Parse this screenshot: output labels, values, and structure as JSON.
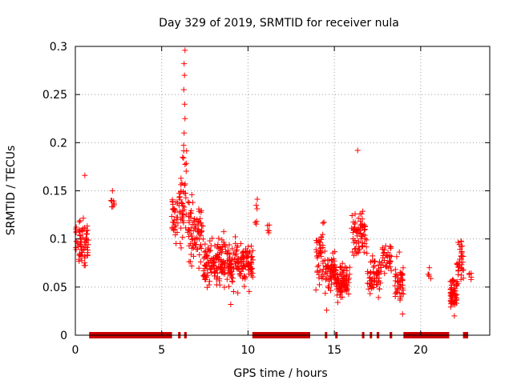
{
  "chart_data": {
    "type": "scatter",
    "title": "Day 329 of 2019, SRMTID for receiver nula",
    "xlabel": "GPS time / hours",
    "ylabel": "SRMTID / TECUs",
    "xlim": [
      0,
      24
    ],
    "ylim": [
      0,
      0.3
    ],
    "grid": true,
    "x_ticks": [
      0,
      5,
      10,
      15,
      20
    ],
    "y_ticks": [
      0,
      0.05,
      0.1,
      0.15,
      0.2,
      0.25,
      0.3
    ],
    "x_tick_labels": [
      "0",
      "5",
      "10",
      "15",
      "20"
    ],
    "y_tick_labels": [
      "0",
      "0.05",
      "0.1",
      "0.15",
      "0.2",
      "0.25",
      "0.3"
    ],
    "marker": "+",
    "marker_color": "#ff0000",
    "zero_line_color": "#cc0000",
    "clusters": [
      {
        "x_range": [
          0.0,
          0.75
        ],
        "y_center": 0.095,
        "y_spread": 0.03,
        "count": 70
      },
      {
        "x_range": [
          2.05,
          2.25
        ],
        "y_center": 0.138,
        "y_spread": 0.008,
        "count": 8
      },
      {
        "x_range": [
          5.55,
          5.95
        ],
        "y_center": 0.12,
        "y_spread": 0.03,
        "count": 30
      },
      {
        "x_range": [
          6.0,
          6.45
        ],
        "y_center": 0.15,
        "y_spread": 0.06,
        "count": 45
      },
      {
        "x_range": [
          6.5,
          7.4
        ],
        "y_center": 0.11,
        "y_spread": 0.04,
        "count": 80
      },
      {
        "x_range": [
          7.4,
          10.3
        ],
        "y_center": 0.075,
        "y_spread": 0.03,
        "count": 280
      },
      {
        "x_range": [
          10.4,
          10.6
        ],
        "y_center": 0.13,
        "y_spread": 0.02,
        "count": 6
      },
      {
        "x_range": [
          11.1,
          11.3
        ],
        "y_center": 0.11,
        "y_spread": 0.01,
        "count": 5
      },
      {
        "x_range": [
          13.9,
          14.4
        ],
        "y_center": 0.08,
        "y_spread": 0.04,
        "count": 45
      },
      {
        "x_range": [
          14.4,
          15.1
        ],
        "y_center": 0.065,
        "y_spread": 0.025,
        "count": 70
      },
      {
        "x_range": [
          15.1,
          15.9
        ],
        "y_center": 0.055,
        "y_spread": 0.02,
        "count": 90
      },
      {
        "x_range": [
          16.0,
          16.9
        ],
        "y_center": 0.105,
        "y_spread": 0.03,
        "count": 70
      },
      {
        "x_range": [
          16.9,
          17.7
        ],
        "y_center": 0.06,
        "y_spread": 0.025,
        "count": 60
      },
      {
        "x_range": [
          17.7,
          18.3
        ],
        "y_center": 0.08,
        "y_spread": 0.02,
        "count": 35
      },
      {
        "x_range": [
          18.5,
          19.0
        ],
        "y_center": 0.055,
        "y_spread": 0.03,
        "count": 45
      },
      {
        "x_range": [
          20.4,
          20.6
        ],
        "y_center": 0.06,
        "y_spread": 0.01,
        "count": 5
      },
      {
        "x_range": [
          21.7,
          22.1
        ],
        "y_center": 0.045,
        "y_spread": 0.02,
        "count": 60
      },
      {
        "x_range": [
          22.1,
          22.5
        ],
        "y_center": 0.075,
        "y_spread": 0.025,
        "count": 40
      },
      {
        "x_range": [
          22.8,
          22.95
        ],
        "y_center": 0.062,
        "y_spread": 0.006,
        "count": 5
      }
    ],
    "notable_points": [
      {
        "x": 6.35,
        "y": 0.296
      },
      {
        "x": 6.3,
        "y": 0.282
      },
      {
        "x": 6.32,
        "y": 0.27
      },
      {
        "x": 6.28,
        "y": 0.255
      },
      {
        "x": 6.33,
        "y": 0.24
      },
      {
        "x": 6.35,
        "y": 0.225
      },
      {
        "x": 6.3,
        "y": 0.21
      },
      {
        "x": 16.35,
        "y": 0.192
      },
      {
        "x": 0.55,
        "y": 0.166
      },
      {
        "x": 2.15,
        "y": 0.15
      },
      {
        "x": 9.0,
        "y": 0.032
      },
      {
        "x": 14.55,
        "y": 0.026
      },
      {
        "x": 21.95,
        "y": 0.02
      },
      {
        "x": 18.95,
        "y": 0.022
      }
    ],
    "zero_value_spans": [
      [
        0.8,
        5.6
      ],
      [
        5.95,
        6.1
      ],
      [
        6.3,
        6.45
      ],
      [
        10.25,
        13.6
      ],
      [
        14.45,
        14.55
      ],
      [
        15.05,
        15.15
      ],
      [
        16.6,
        16.7
      ],
      [
        17.05,
        17.15
      ],
      [
        17.45,
        17.6
      ],
      [
        18.2,
        18.35
      ],
      [
        19.0,
        21.65
      ],
      [
        22.45,
        22.75
      ]
    ]
  }
}
